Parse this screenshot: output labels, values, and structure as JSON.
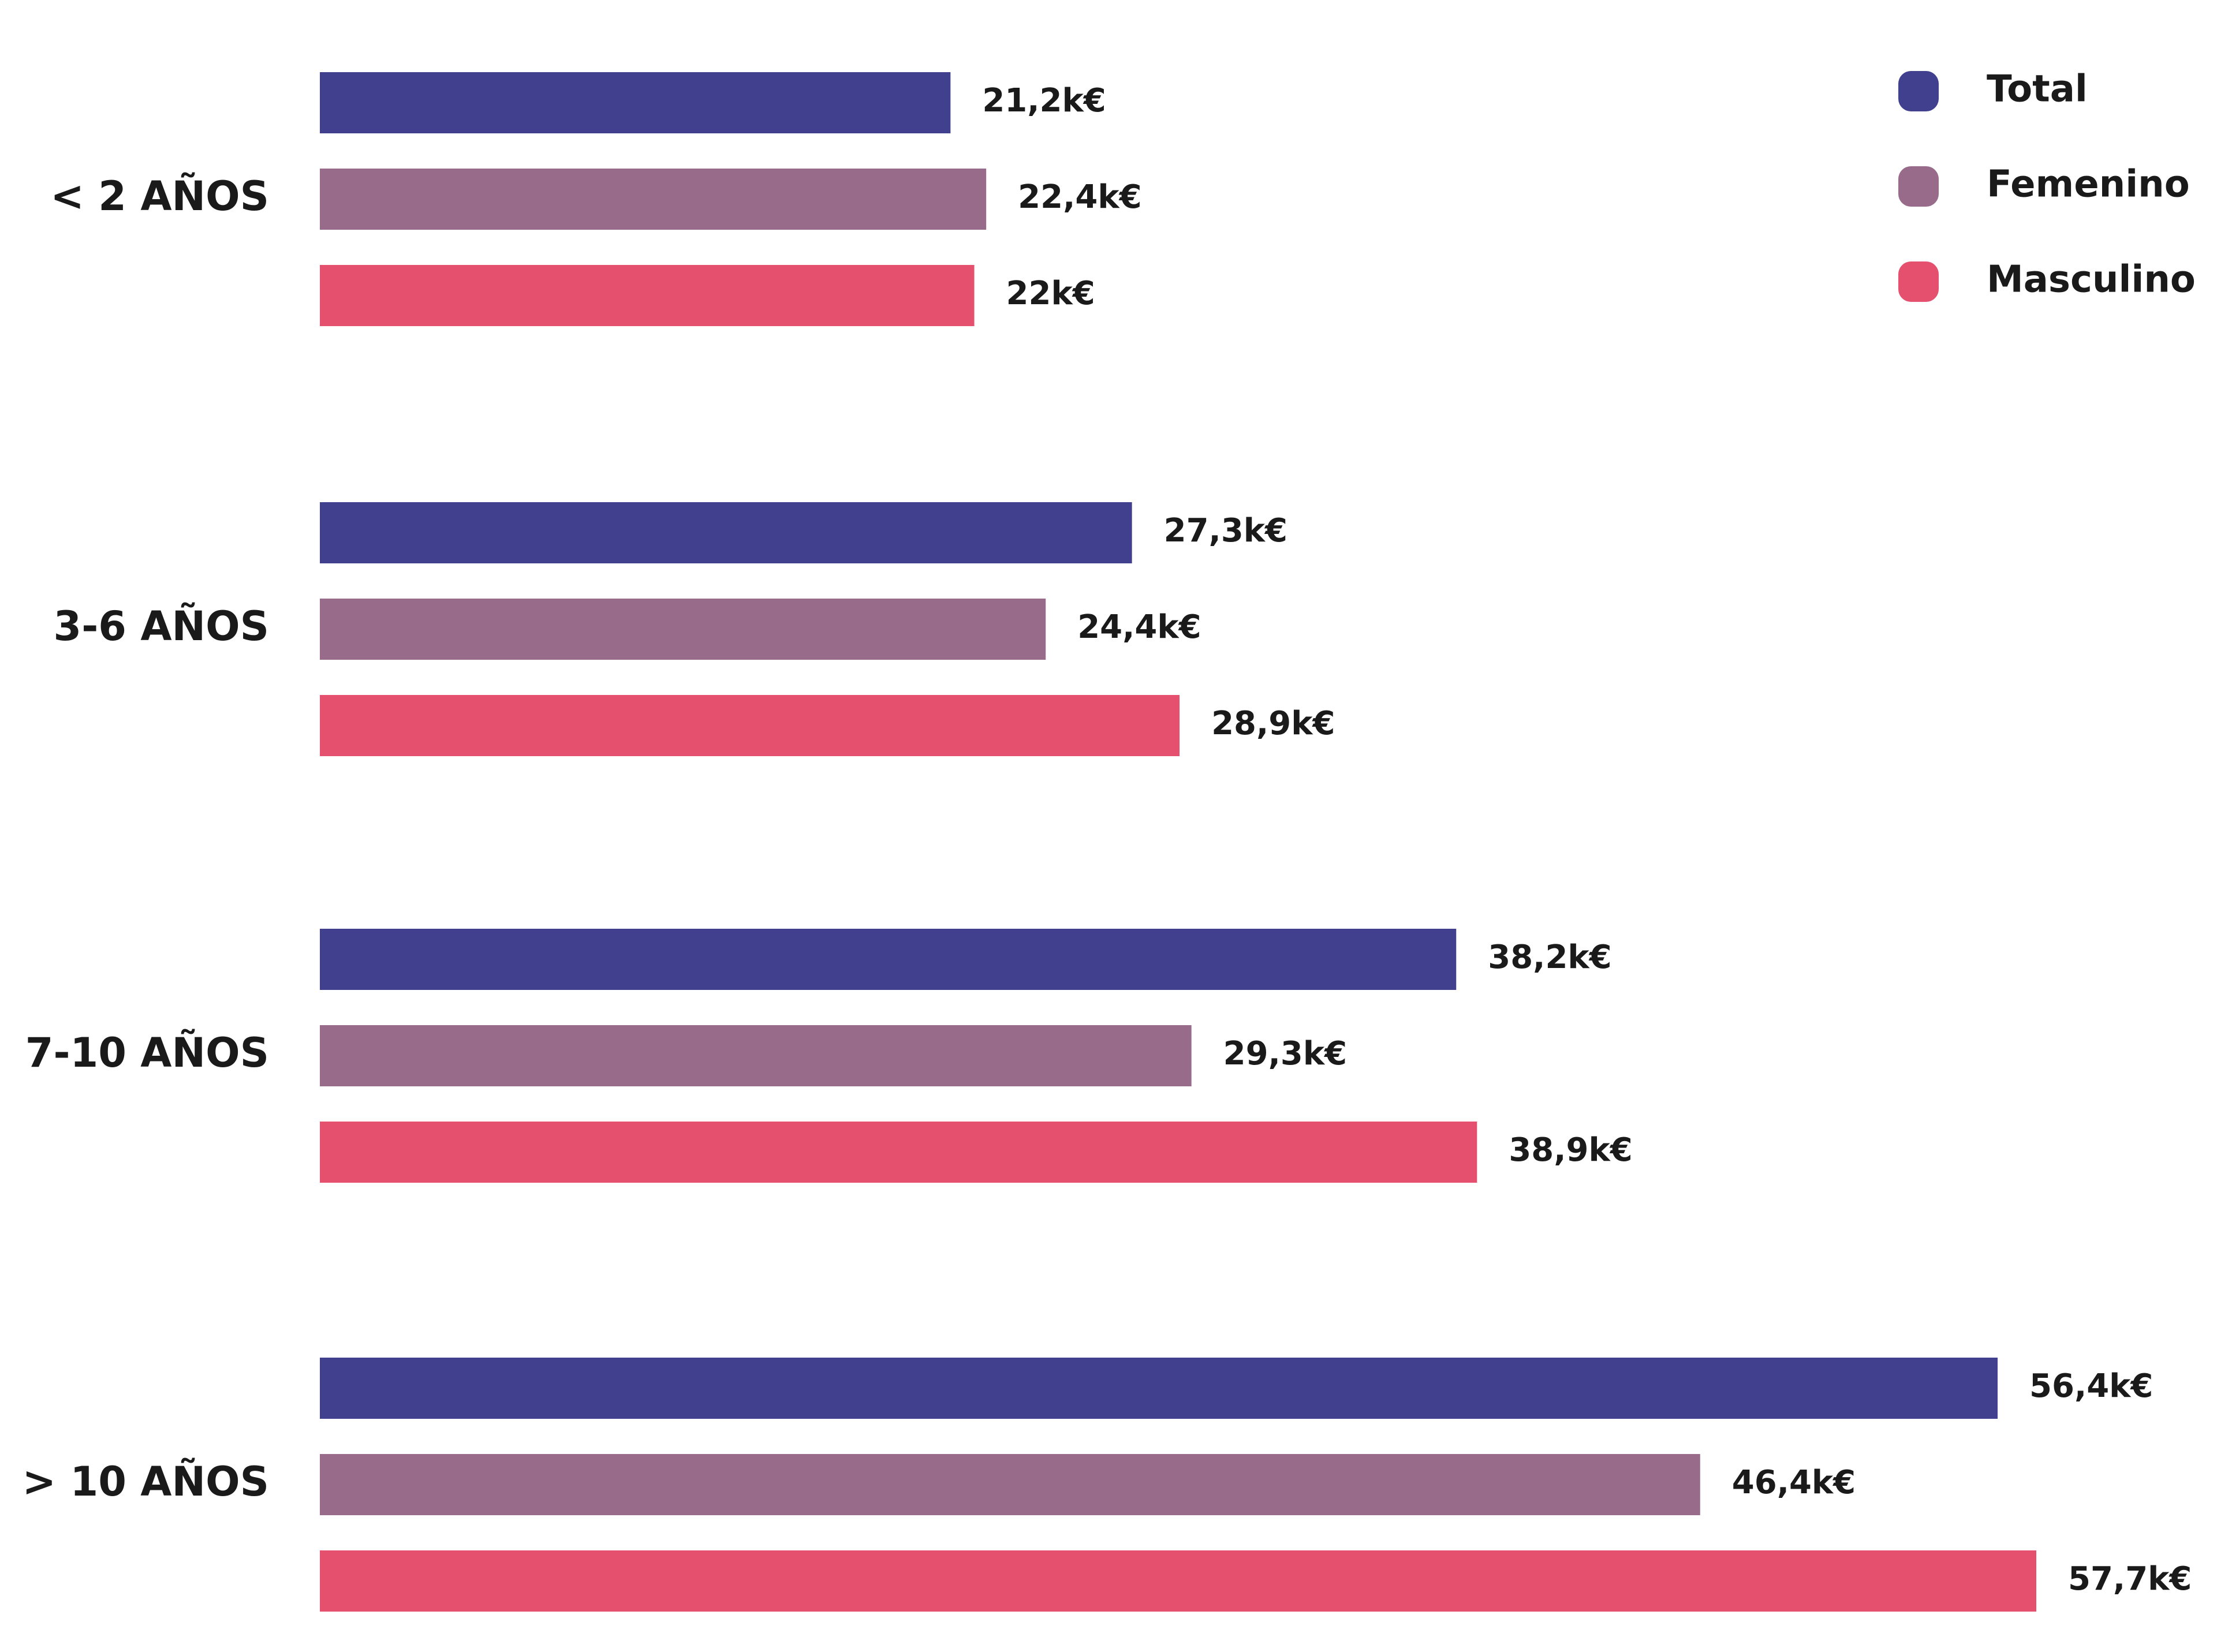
{
  "chart_data": {
    "type": "bar",
    "orientation": "horizontal",
    "categories": [
      "< 2 AÑOS",
      "3-6 AÑOS",
      "7-10 AÑOS",
      "> 10 AÑOS"
    ],
    "series": [
      {
        "name": "Total",
        "color": "#41408f",
        "values": [
          21.2,
          27.3,
          38.2,
          56.4
        ],
        "value_labels": [
          "21,2k€",
          "27,3k€",
          "38,2k€",
          "56,4k€"
        ]
      },
      {
        "name": "Femenino",
        "color": "#986b8a",
        "values": [
          22.4,
          24.4,
          29.3,
          46.4
        ],
        "value_labels": [
          "22,4k€",
          "24,4k€",
          "29,3k€",
          "46,4k€"
        ]
      },
      {
        "name": "Masculino",
        "color": "#e5506e",
        "values": [
          22,
          28.9,
          38.9,
          57.7
        ],
        "value_labels": [
          "22k€",
          "28,9k€",
          "38,9k€",
          "57,7k€"
        ]
      }
    ],
    "legend": "top-right"
  }
}
